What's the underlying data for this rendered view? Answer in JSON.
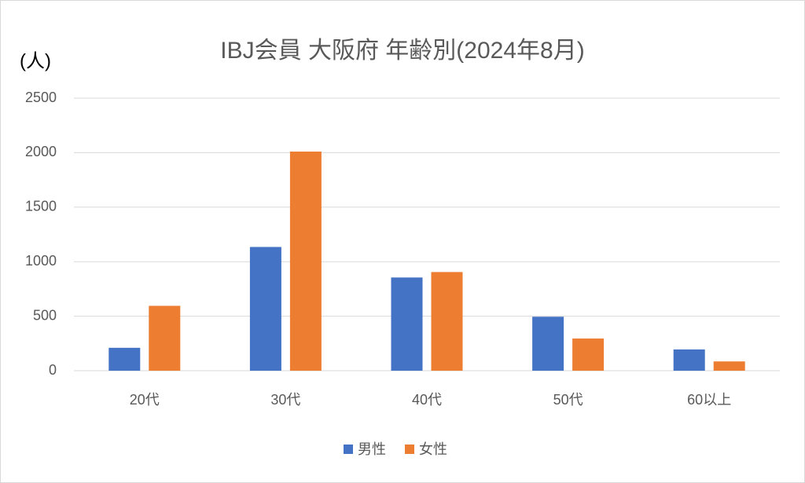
{
  "chart_data": {
    "type": "bar",
    "title": "IBJ会員 大阪府 年齢別(2024年8月)",
    "y_label": "(人)",
    "categories": [
      "20代",
      "30代",
      "40代",
      "50代",
      "60以上"
    ],
    "series": [
      {
        "name": "男性",
        "color": "#4472c4",
        "values": [
          210,
          1135,
          855,
          495,
          195
        ]
      },
      {
        "name": "女性",
        "color": "#ed7d31",
        "values": [
          595,
          2010,
          905,
          295,
          85
        ]
      }
    ],
    "ylim": [
      0,
      2500
    ],
    "yticks": [
      0,
      500,
      1000,
      1500,
      2000,
      2500
    ],
    "grid": true,
    "legend": "bottom"
  }
}
